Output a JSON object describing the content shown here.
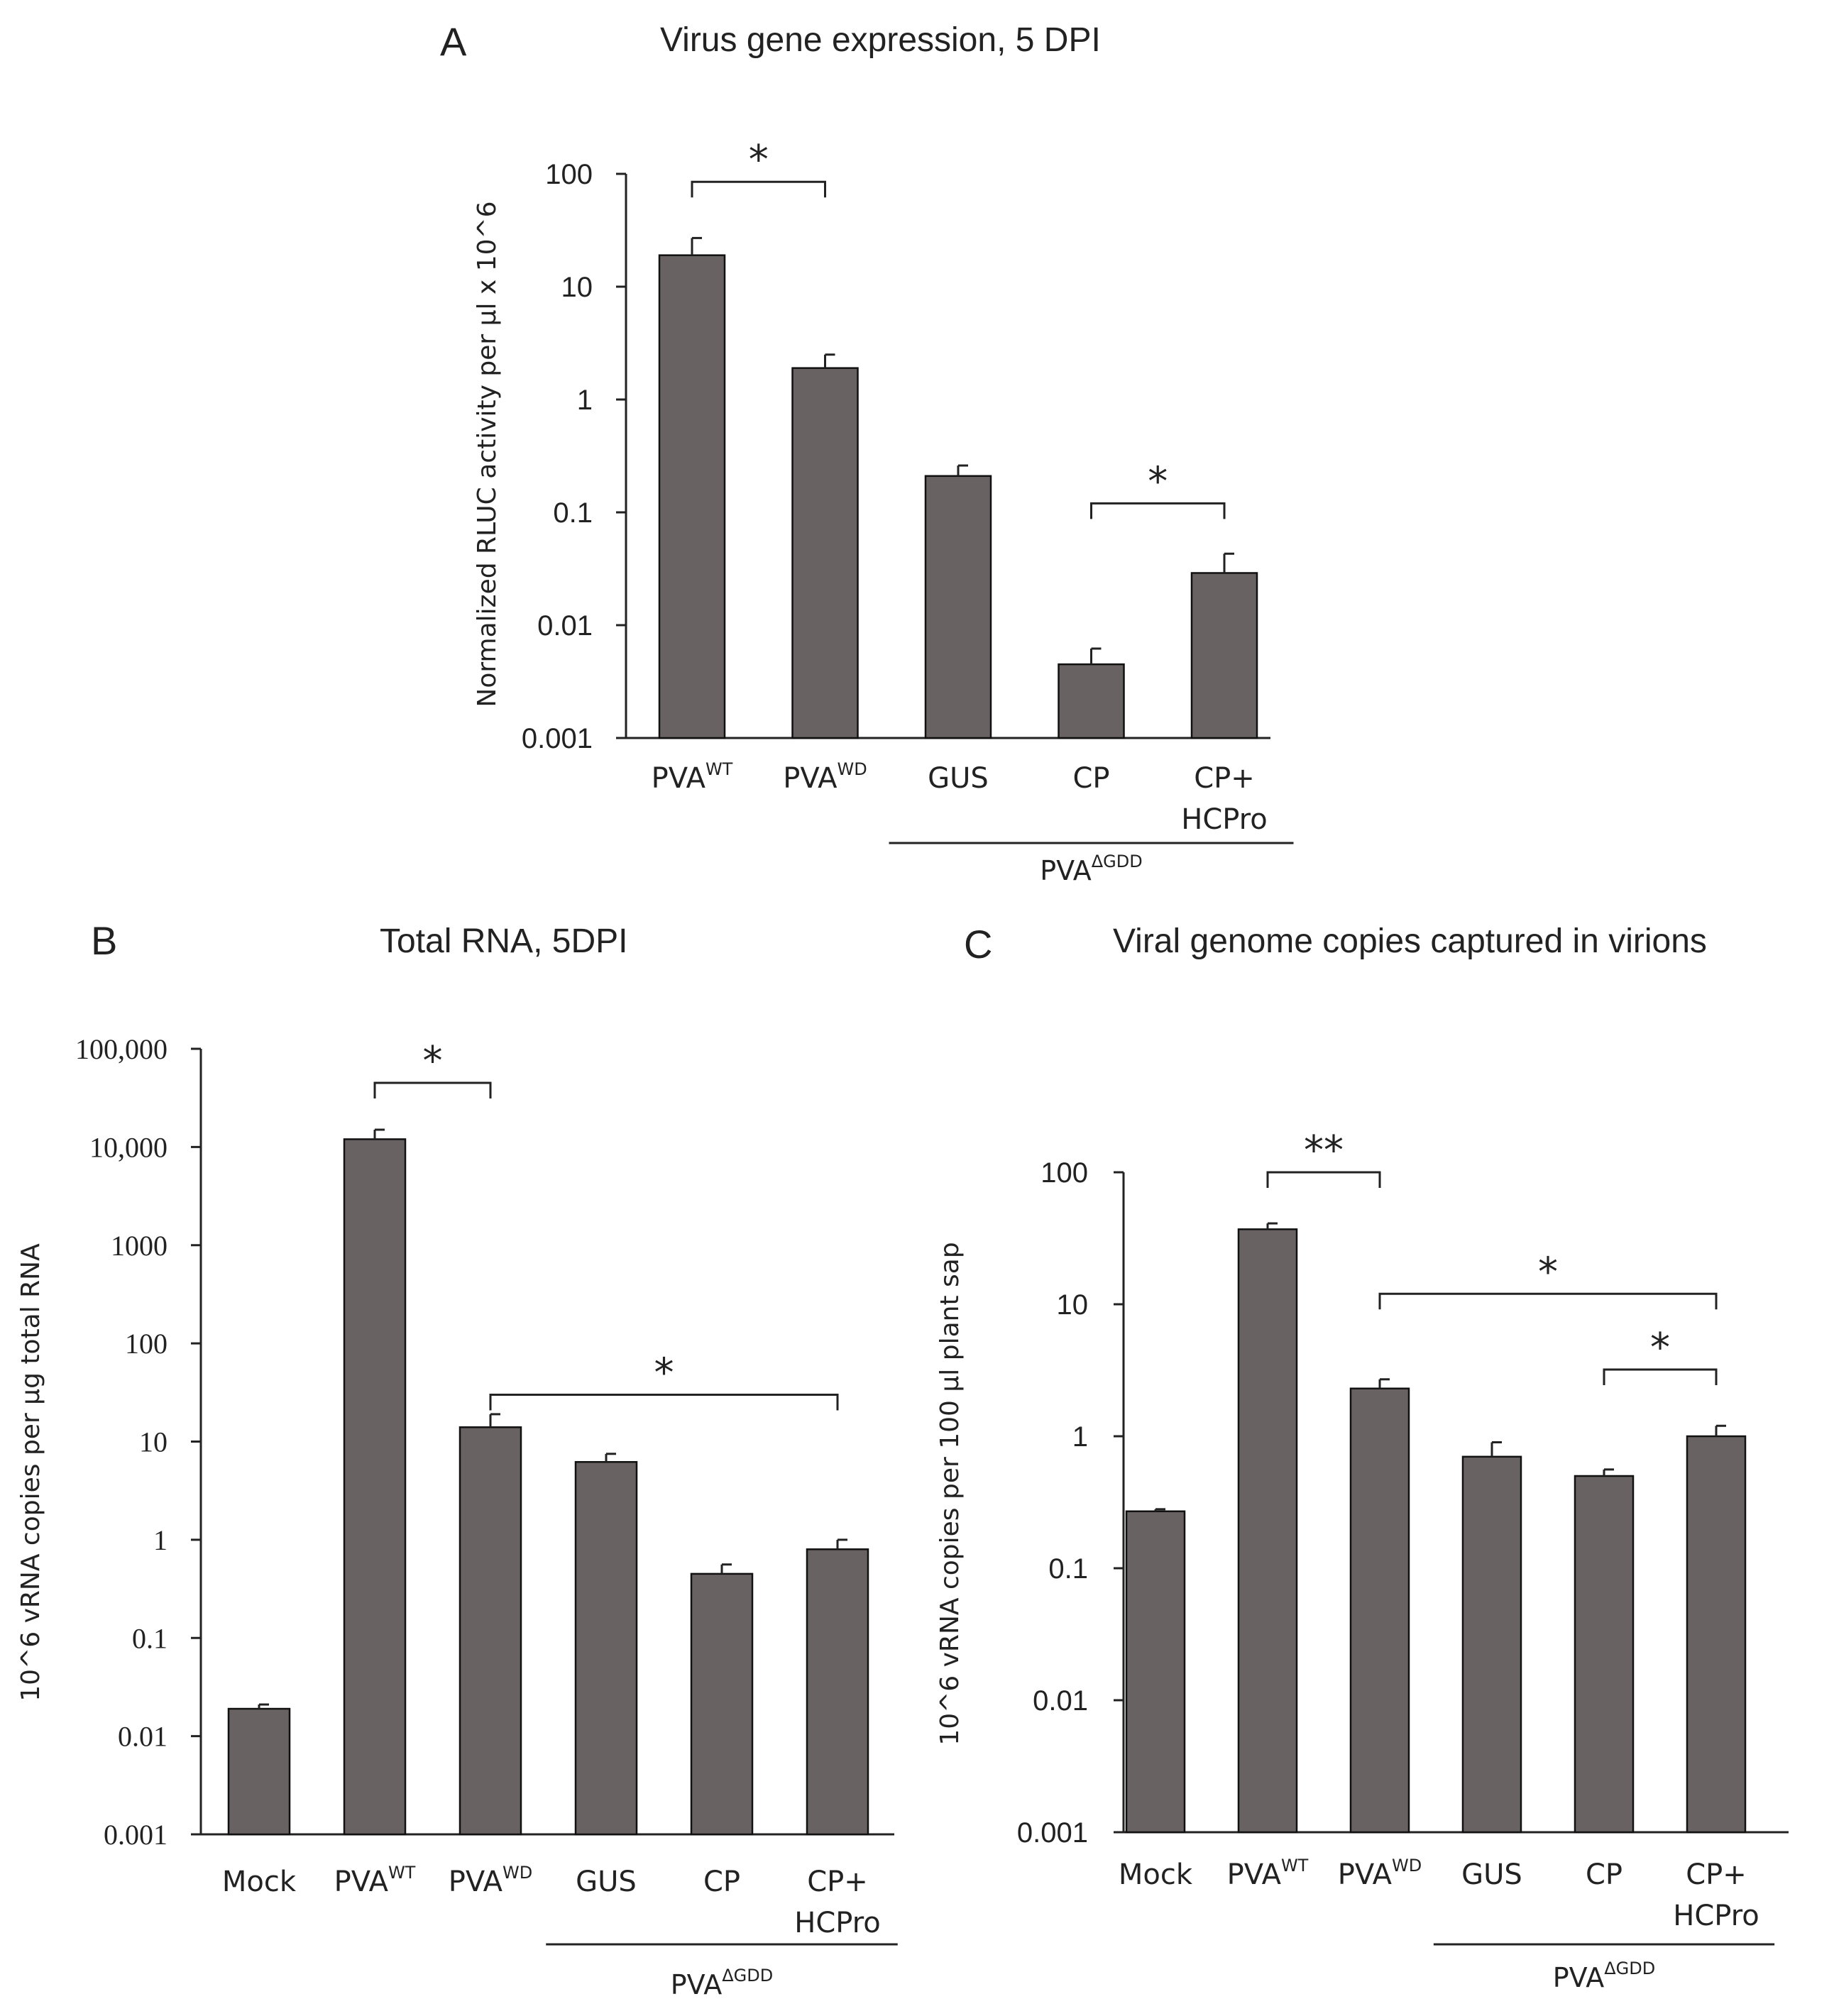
{
  "chart_data": [
    {
      "type": "bar",
      "panel": "A",
      "title": "Virus gene expression, 5 DPI",
      "ylabel": "Normalized RLUC activity per µl x 10^6",
      "yscale": "log",
      "ylim": [
        0.001,
        100
      ],
      "yticks": [
        {
          "v": 0.001,
          "label": "0.001"
        },
        {
          "v": 0.01,
          "label": "0.01"
        },
        {
          "v": 0.1,
          "label": "0.1"
        },
        {
          "v": 1,
          "label": "1"
        },
        {
          "v": 10,
          "label": "10"
        },
        {
          "v": 100,
          "label": "100"
        }
      ],
      "categories": [
        {
          "label": "PVA",
          "sup": "WT"
        },
        {
          "label": "PVA",
          "sup": "WD"
        },
        {
          "label": "GUS",
          "sup": ""
        },
        {
          "label": "CP",
          "sup": ""
        },
        {
          "label": "CP+",
          "line2": "HCPro",
          "sup": ""
        }
      ],
      "values": [
        19,
        1.9,
        0.21,
        0.0045,
        0.029
      ],
      "errors": [
        27,
        2.5,
        0.26,
        0.0062,
        0.043
      ],
      "group": {
        "label": "PVA",
        "sup": "ΔGDD",
        "from": 2,
        "to": 4
      },
      "significance": [
        {
          "from": 0,
          "to": 1,
          "label": "*",
          "level": 85
        },
        {
          "from": 3,
          "to": 4,
          "label": "*",
          "level": 0.12
        }
      ],
      "bar_color": "#686262"
    },
    {
      "type": "bar",
      "panel": "B",
      "title": "Total RNA, 5DPI",
      "ylabel": "10^6 vRNA copies per µg total RNA",
      "yscale": "log",
      "ylim": [
        0.001,
        100000
      ],
      "yticks": [
        {
          "v": 0.001,
          "label": "0.001"
        },
        {
          "v": 0.01,
          "label": "0.01"
        },
        {
          "v": 0.1,
          "label": "0.1"
        },
        {
          "v": 1,
          "label": "1"
        },
        {
          "v": 10,
          "label": "10"
        },
        {
          "v": 100,
          "label": "100"
        },
        {
          "v": 1000,
          "label": "1000"
        },
        {
          "v": 10000,
          "label": "10,000"
        },
        {
          "v": 100000,
          "label": "100,000"
        }
      ],
      "categories": [
        {
          "label": "Mock",
          "sup": ""
        },
        {
          "label": "PVA",
          "sup": "WT"
        },
        {
          "label": "PVA",
          "sup": "WD"
        },
        {
          "label": "GUS",
          "sup": ""
        },
        {
          "label": "CP",
          "sup": ""
        },
        {
          "label": "CP+",
          "line2": "HCPro",
          "sup": ""
        }
      ],
      "values": [
        0.019,
        12000,
        14,
        6.2,
        0.45,
        0.8
      ],
      "errors": [
        0.021,
        15000,
        19,
        7.5,
        0.56,
        1.0
      ],
      "group": {
        "label": "PVA",
        "sup": "ΔGDD",
        "from": 3,
        "to": 5
      },
      "significance": [
        {
          "from": 1,
          "to": 2,
          "label": "*",
          "level": 45000
        },
        {
          "from": 2,
          "to": 5,
          "label": "*",
          "level": 30
        }
      ],
      "bar_color": "#686262"
    },
    {
      "type": "bar",
      "panel": "C",
      "title": "Viral genome copies captured in virions",
      "ylabel": "10^6 vRNA copies per 100 µl plant sap",
      "yscale": "log",
      "ylim": [
        0.001,
        100
      ],
      "yticks": [
        {
          "v": 0.001,
          "label": "0.001"
        },
        {
          "v": 0.01,
          "label": "0.01"
        },
        {
          "v": 0.1,
          "label": "0.1"
        },
        {
          "v": 1,
          "label": "1"
        },
        {
          "v": 10,
          "label": "10"
        },
        {
          "v": 100,
          "label": "100"
        }
      ],
      "categories": [
        {
          "label": "Mock",
          "sup": ""
        },
        {
          "label": "PVA",
          "sup": "WT"
        },
        {
          "label": "PVA",
          "sup": "WD"
        },
        {
          "label": "GUS",
          "sup": ""
        },
        {
          "label": "CP",
          "sup": ""
        },
        {
          "label": "CP+",
          "line2": "HCPro",
          "sup": ""
        }
      ],
      "values": [
        0.27,
        37,
        2.3,
        0.7,
        0.5,
        1.0
      ],
      "errors": [
        0.28,
        41,
        2.7,
        0.9,
        0.56,
        1.2
      ],
      "group": {
        "label": "PVA",
        "sup": "ΔGDD",
        "from": 3,
        "to": 5
      },
      "significance": [
        {
          "from": 1,
          "to": 2,
          "label": "**",
          "level": 100
        },
        {
          "from": 2,
          "to": 5,
          "label": "*",
          "level": 12
        },
        {
          "from": 4,
          "to": 5,
          "label": "*",
          "level": 3.2
        }
      ],
      "bar_color": "#686262"
    }
  ]
}
